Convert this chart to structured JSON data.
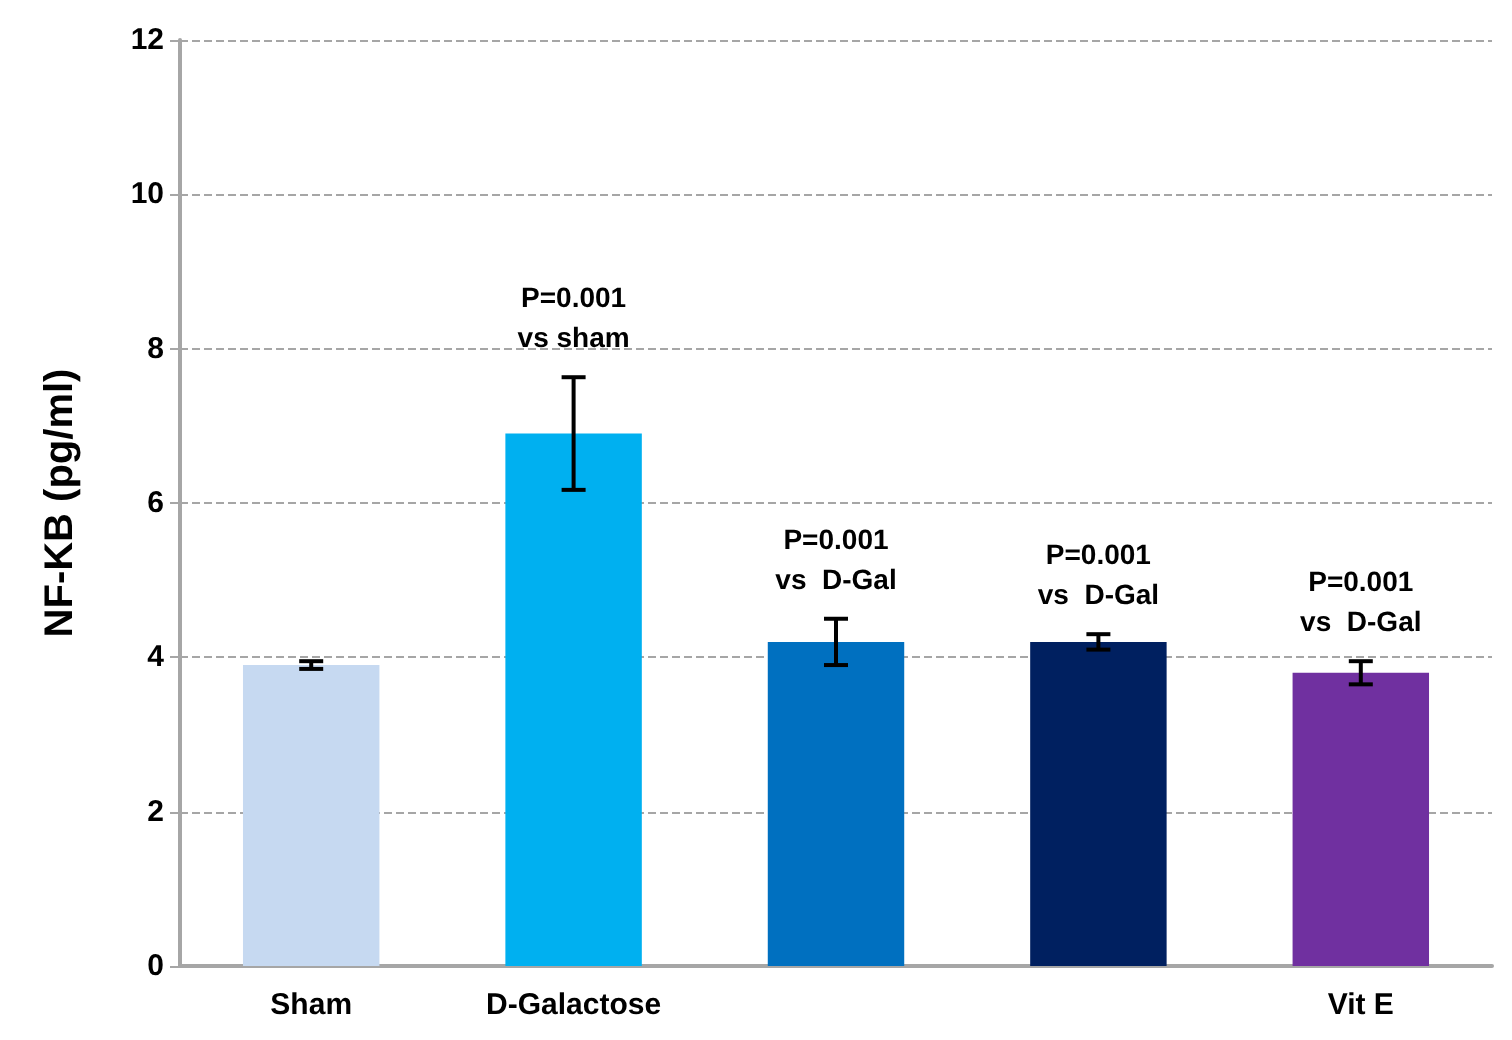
{
  "chart_data": {
    "type": "bar",
    "ylabel": "NF-KB (pg/ml)",
    "categories": [
      "Sham",
      "D-Galactose",
      null,
      null,
      "Vit E"
    ],
    "values": [
      3.9,
      6.9,
      4.2,
      4.2,
      3.8
    ],
    "colors": [
      "#c6d9f1",
      "#00b0f0",
      "#0070c0",
      "#002060",
      "#7030a0"
    ],
    "errors": [
      0.05,
      0.73,
      0.3,
      0.1,
      0.15
    ],
    "annotations": [
      "P=0.001\nvs sham",
      "P=0.001\nvs  D-Gal",
      "P=0.001\nvs  D-Gal",
      "P=0.001\nvs  D-Gal"
    ],
    "ylim": [
      0,
      12
    ],
    "yticks": [
      0,
      2,
      4,
      6,
      8,
      10,
      12
    ],
    "grid": "y"
  }
}
